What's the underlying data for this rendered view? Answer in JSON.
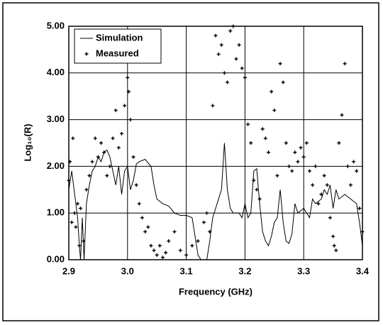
{
  "chart_data": {
    "type": "line",
    "xlabel": "Frequency (GHz)",
    "ylabel": "Log₁₀(R)",
    "xlim": [
      2.9,
      3.4
    ],
    "ylim": [
      0,
      5
    ],
    "xticks": [
      2.9,
      {
        "value": 3.0,
        "label": "3.0"
      },
      3.1,
      3.2,
      3.3,
      3.4
    ],
    "yticks": [
      {
        "value": 0,
        "label": "0.00"
      },
      {
        "value": 1,
        "label": "1.00"
      },
      {
        "value": 2,
        "label": "2.00"
      },
      {
        "value": 3,
        "label": "3.00"
      },
      {
        "value": 4,
        "label": "4.00"
      },
      {
        "value": 5,
        "label": "5.00"
      }
    ],
    "grid": true,
    "legend": "upper left",
    "series": [
      {
        "name": "Simulation",
        "type": "line",
        "color": "#000000",
        "x": [
          2.9,
          2.905,
          2.91,
          2.915,
          2.918,
          2.92,
          2.923,
          2.926,
          2.93,
          2.935,
          2.94,
          2.945,
          2.95,
          2.955,
          2.96,
          2.965,
          2.97,
          2.975,
          2.98,
          2.985,
          2.99,
          2.995,
          3.0,
          3.005,
          3.01,
          3.015,
          3.02,
          3.03,
          3.04,
          3.045,
          3.05,
          3.06,
          3.07,
          3.08,
          3.09,
          3.1,
          3.11,
          3.115,
          3.12,
          3.125,
          3.135,
          3.14,
          3.145,
          3.15,
          3.155,
          3.16,
          3.165,
          3.17,
          3.175,
          3.18,
          3.19,
          3.195,
          3.2,
          3.205,
          3.21,
          3.215,
          3.22,
          3.225,
          3.23,
          3.235,
          3.24,
          3.245,
          3.25,
          3.255,
          3.26,
          3.265,
          3.27,
          3.275,
          3.28,
          3.285,
          3.29,
          3.3,
          3.305,
          3.31,
          3.315,
          3.32,
          3.33,
          3.335,
          3.34,
          3.345,
          3.35,
          3.355,
          3.36,
          3.37,
          3.38,
          3.39,
          3.395,
          3.4
        ],
        "values": [
          1.5,
          1.9,
          1.4,
          0.9,
          0.3,
          0.0,
          0.9,
          0.0,
          1.2,
          1.6,
          1.9,
          2.0,
          2.2,
          2.1,
          2.3,
          2.35,
          2.2,
          1.9,
          1.6,
          2.0,
          1.4,
          1.9,
          2.0,
          1.5,
          1.7,
          2.05,
          2.1,
          2.15,
          2.0,
          1.6,
          1.3,
          1.2,
          1.15,
          1.0,
          0.95,
          0.95,
          0.9,
          0.5,
          0.1,
          0.0,
          0.0,
          0.4,
          0.9,
          1.1,
          1.3,
          1.5,
          2.5,
          1.5,
          1.1,
          1.0,
          1.0,
          0.9,
          1.2,
          0.9,
          1.0,
          1.9,
          1.95,
          1.2,
          0.6,
          0.4,
          0.3,
          0.5,
          0.8,
          0.9,
          1.5,
          0.8,
          0.4,
          0.35,
          0.55,
          1.2,
          1.0,
          1.1,
          1.0,
          0.9,
          1.3,
          1.2,
          1.3,
          1.5,
          1.4,
          1.6,
          1.1,
          1.5,
          1.3,
          1.4,
          1.3,
          1.2,
          0.8,
          0.3
        ]
      },
      {
        "name": "Measured",
        "type": "scatter",
        "color": "#000000",
        "x": [
          2.9,
          2.902,
          2.905,
          2.907,
          2.91,
          2.912,
          2.915,
          2.918,
          2.92,
          2.925,
          2.93,
          2.935,
          2.94,
          2.945,
          2.95,
          2.955,
          2.96,
          2.965,
          2.97,
          2.975,
          2.98,
          2.985,
          2.99,
          2.995,
          3.0,
          3.002,
          3.005,
          3.01,
          3.015,
          3.02,
          3.025,
          3.03,
          3.035,
          3.04,
          3.045,
          3.05,
          3.055,
          3.06,
          3.065,
          3.07,
          3.08,
          3.09,
          3.1,
          3.11,
          3.12,
          3.13,
          3.135,
          3.14,
          3.145,
          3.15,
          3.155,
          3.16,
          3.165,
          3.17,
          3.175,
          3.18,
          3.185,
          3.19,
          3.195,
          3.2,
          3.205,
          3.21,
          3.215,
          3.22,
          3.225,
          3.23,
          3.235,
          3.24,
          3.245,
          3.25,
          3.255,
          3.26,
          3.265,
          3.27,
          3.275,
          3.28,
          3.285,
          3.29,
          3.295,
          3.3,
          3.305,
          3.31,
          3.315,
          3.32,
          3.325,
          3.33,
          3.335,
          3.34,
          3.345,
          3.35,
          3.352,
          3.355,
          3.36,
          3.365,
          3.37,
          3.375,
          3.38,
          3.385,
          3.39,
          3.395,
          3.4
        ],
        "values": [
          1.7,
          2.1,
          0.8,
          2.6,
          1.0,
          0.7,
          1.2,
          0.3,
          1.1,
          0.4,
          1.5,
          1.8,
          2.1,
          2.6,
          2.2,
          2.5,
          2.3,
          1.8,
          2.0,
          2.6,
          3.2,
          2.4,
          2.7,
          3.3,
          3.9,
          3.6,
          3.0,
          2.2,
          1.6,
          1.2,
          0.9,
          0.6,
          0.7,
          0.3,
          0.2,
          0.1,
          0.3,
          0.05,
          0.15,
          0.4,
          0.6,
          0.2,
          0.1,
          0.3,
          0.4,
          0.8,
          1.0,
          0.6,
          3.3,
          4.8,
          4.4,
          4.6,
          4.0,
          3.8,
          4.9,
          5.0,
          4.3,
          4.6,
          4.1,
          3.9,
          2.9,
          2.5,
          1.7,
          1.5,
          1.3,
          2.8,
          2.6,
          2.3,
          3.6,
          3.2,
          1.8,
          4.2,
          3.8,
          2.5,
          2.0,
          1.9,
          2.3,
          2.1,
          2.4,
          2.2,
          2.5,
          1.9,
          1.6,
          2.0,
          1.2,
          1.4,
          1.8,
          1.6,
          0.9,
          0.5,
          0.3,
          0.2,
          2.5,
          3.1,
          4.2,
          2.0,
          1.6,
          2.1,
          1.9,
          1.1,
          0.6
        ]
      }
    ]
  }
}
